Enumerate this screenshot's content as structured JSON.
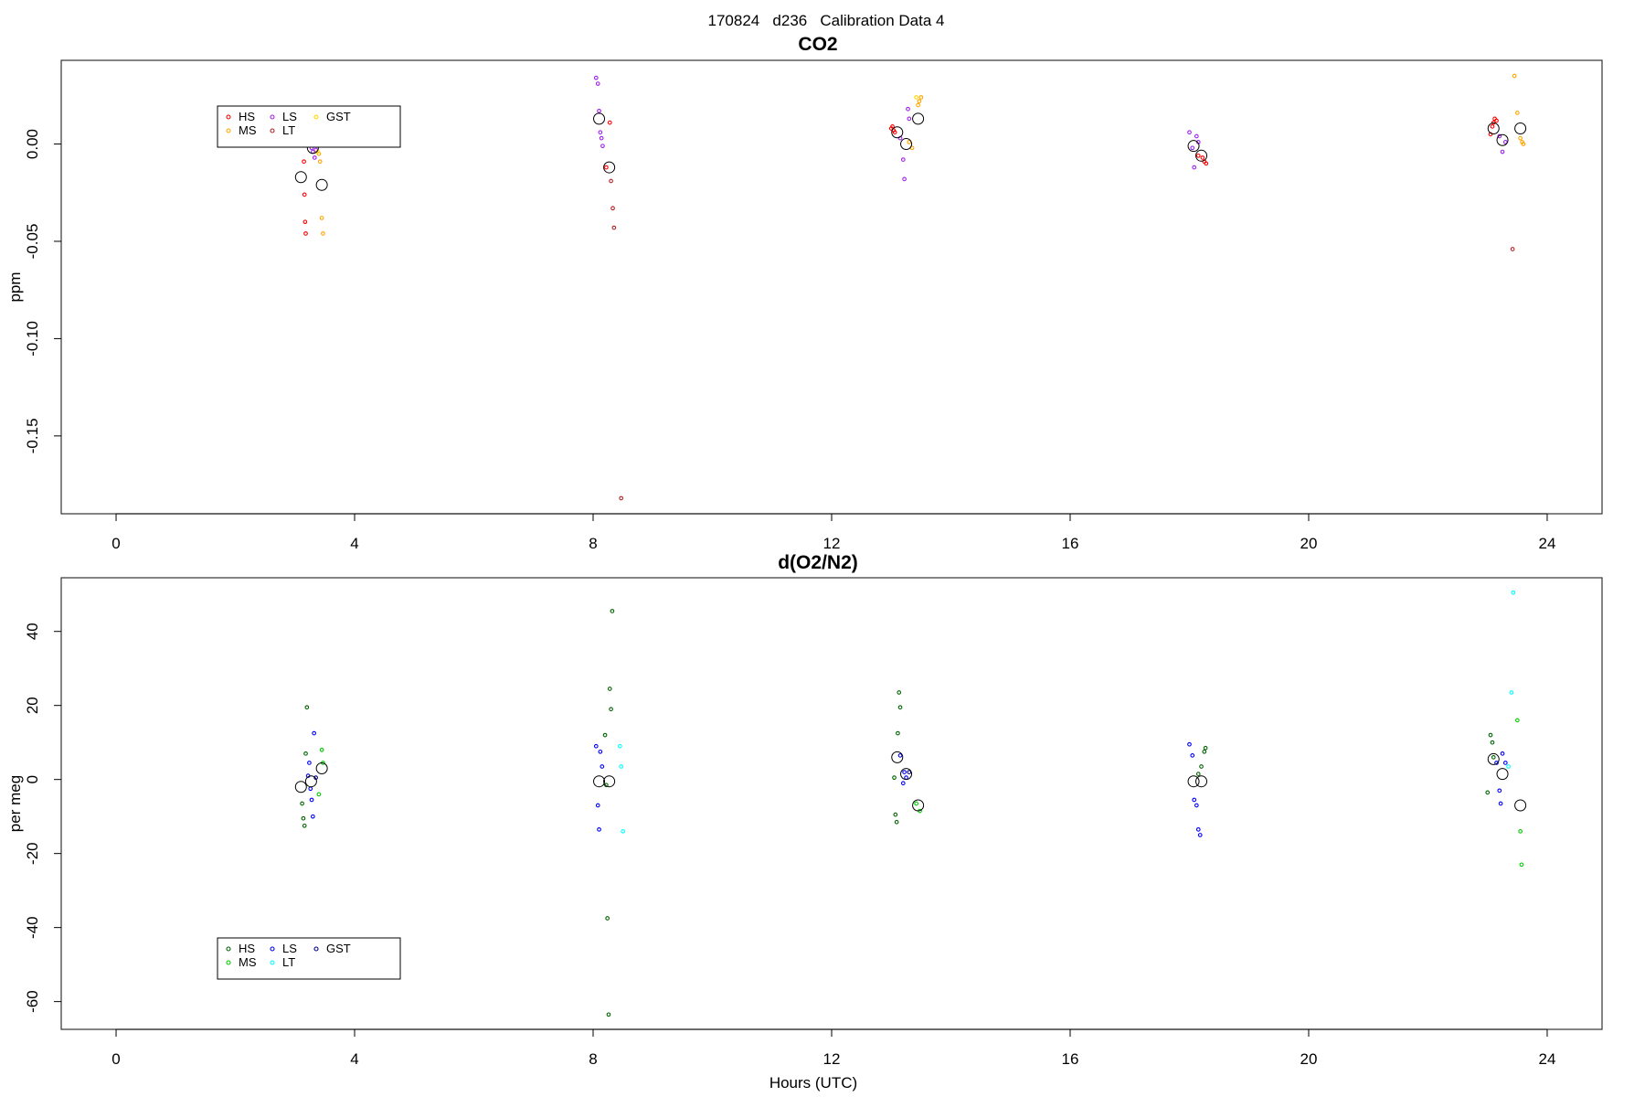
{
  "figure_title": "170824   d236   Calibration Data 4",
  "chart_data": [
    {
      "type": "scatter",
      "title": "CO2",
      "xlabel": "",
      "ylabel": "ppm",
      "xlim": [
        -0.92,
        24.92
      ],
      "ylim": [
        -0.19,
        0.043
      ],
      "xticks": [
        0,
        4,
        8,
        12,
        16,
        20,
        24
      ],
      "yticks": [
        0.0,
        -0.05,
        -0.1,
        -0.15
      ],
      "ytick_labels": [
        "0.00",
        "-0.05",
        "-0.10",
        "-0.15"
      ],
      "grid": false,
      "legend": {
        "placement": "top-left",
        "columns": 3,
        "entries": [
          {
            "label": "HS",
            "color": "#ff0000"
          },
          {
            "label": "MS",
            "color": "#ffa500"
          },
          {
            "label": "LS",
            "color": "#a020f0"
          },
          {
            "label": "LT",
            "color": "#b22222"
          },
          {
            "label": "GST",
            "color": "#ffd700"
          }
        ]
      },
      "series": [
        {
          "name": "HS",
          "color": "#ff0000",
          "points": [
            [
              3.15,
              -0.009
            ],
            [
              3.16,
              -0.026
            ],
            [
              3.17,
              -0.04
            ],
            [
              3.18,
              -0.046
            ],
            [
              8.22,
              -0.012
            ],
            [
              8.28,
              0.011
            ],
            [
              13.0,
              0.008
            ],
            [
              13.02,
              0.009
            ],
            [
              13.04,
              0.007
            ],
            [
              13.06,
              0.006
            ],
            [
              18.15,
              -0.006
            ],
            [
              18.22,
              -0.007
            ],
            [
              18.25,
              -0.009
            ],
            [
              18.28,
              -0.01
            ],
            [
              23.05,
              0.005
            ],
            [
              23.08,
              0.009
            ],
            [
              23.1,
              0.011
            ],
            [
              23.12,
              0.013
            ],
            [
              23.15,
              0.012
            ]
          ]
        },
        {
          "name": "MS",
          "color": "#ffa500",
          "points": [
            [
              3.4,
              -0.005
            ],
            [
              3.42,
              -0.009
            ],
            [
              3.45,
              -0.038
            ],
            [
              3.47,
              -0.046
            ],
            [
              13.3,
              0.001
            ],
            [
              13.35,
              -0.002
            ],
            [
              13.45,
              0.02
            ],
            [
              13.47,
              0.022
            ],
            [
              13.5,
              0.024
            ],
            [
              23.45,
              0.035
            ],
            [
              23.5,
              0.016
            ],
            [
              23.55,
              0.003
            ],
            [
              23.58,
              0.001
            ],
            [
              23.6,
              0.0
            ]
          ]
        },
        {
          "name": "LS",
          "color": "#a020f0",
          "points": [
            [
              3.28,
              -0.002
            ],
            [
              3.3,
              -0.004
            ],
            [
              3.33,
              -0.007
            ],
            [
              3.35,
              -0.003
            ],
            [
              8.05,
              0.034
            ],
            [
              8.08,
              0.031
            ],
            [
              8.1,
              0.017
            ],
            [
              8.12,
              0.006
            ],
            [
              8.14,
              0.003
            ],
            [
              8.16,
              -0.001
            ],
            [
              13.15,
              0.003
            ],
            [
              13.2,
              -0.008
            ],
            [
              13.22,
              -0.018
            ],
            [
              13.28,
              0.018
            ],
            [
              13.3,
              0.013
            ],
            [
              18.0,
              0.006
            ],
            [
              18.05,
              -0.002
            ],
            [
              18.08,
              -0.012
            ],
            [
              18.12,
              0.004
            ],
            [
              18.15,
              0.001
            ],
            [
              23.2,
              0.004
            ],
            [
              23.25,
              -0.004
            ],
            [
              23.3,
              0.001
            ]
          ]
        },
        {
          "name": "LT",
          "color": "#b22222",
          "points": [
            [
              8.3,
              -0.019
            ],
            [
              8.33,
              -0.033
            ],
            [
              8.35,
              -0.043
            ],
            [
              8.47,
              -0.182
            ],
            [
              23.42,
              -0.054
            ]
          ]
        },
        {
          "name": "GST",
          "color": "#ffd700",
          "points": [
            [
              3.38,
              -0.004
            ],
            [
              13.42,
              0.024
            ]
          ]
        },
        {
          "name": "",
          "color": "#000000",
          "marker": "large-circle",
          "points": [
            [
              3.1,
              -0.017
            ],
            [
              3.3,
              -0.002
            ],
            [
              3.45,
              -0.021
            ],
            [
              8.1,
              0.013
            ],
            [
              8.27,
              -0.012
            ],
            [
              13.1,
              0.006
            ],
            [
              13.25,
              0.0
            ],
            [
              13.45,
              0.013
            ],
            [
              18.07,
              -0.001
            ],
            [
              18.2,
              -0.006
            ],
            [
              23.1,
              0.008
            ],
            [
              23.25,
              0.002
            ],
            [
              23.55,
              0.008
            ]
          ]
        }
      ]
    },
    {
      "type": "scatter",
      "title": "d(O2/N2)",
      "xlabel": "Hours (UTC)",
      "ylabel": "per meg",
      "xlim": [
        -0.92,
        24.92
      ],
      "ylim": [
        -67.5,
        54.5
      ],
      "xticks": [
        0,
        4,
        8,
        12,
        16,
        20,
        24
      ],
      "yticks": [
        40,
        20,
        0,
        -20,
        -40,
        -60
      ],
      "ytick_labels": [
        "40",
        "20",
        "0",
        "-20",
        "-40",
        "-60"
      ],
      "grid": false,
      "legend": {
        "placement": "bottom-left",
        "columns": 3,
        "entries": [
          {
            "label": "HS",
            "color": "#006400"
          },
          {
            "label": "MS",
            "color": "#00cd00"
          },
          {
            "label": "LS",
            "color": "#0000ff"
          },
          {
            "label": "LT",
            "color": "#00ffff"
          },
          {
            "label": "GST",
            "color": "#00008b"
          }
        ]
      },
      "series": [
        {
          "name": "HS",
          "color": "#006400",
          "points": [
            [
              3.12,
              -6.5
            ],
            [
              3.14,
              -10.5
            ],
            [
              3.16,
              -12.5
            ],
            [
              3.18,
              7.0
            ],
            [
              3.2,
              19.5
            ],
            [
              8.2,
              12.0
            ],
            [
              8.22,
              -1.5
            ],
            [
              8.24,
              -37.5
            ],
            [
              8.26,
              -63.5
            ],
            [
              8.28,
              24.5
            ],
            [
              8.3,
              19.0
            ],
            [
              8.32,
              45.5
            ],
            [
              13.05,
              0.5
            ],
            [
              13.07,
              -9.5
            ],
            [
              13.09,
              -11.5
            ],
            [
              13.11,
              12.5
            ],
            [
              13.13,
              23.5
            ],
            [
              13.15,
              19.5
            ],
            [
              18.15,
              1.5
            ],
            [
              18.2,
              3.5
            ],
            [
              18.25,
              7.5
            ],
            [
              18.27,
              8.5
            ],
            [
              23.0,
              -3.5
            ],
            [
              23.05,
              12.0
            ],
            [
              23.08,
              10.0
            ],
            [
              23.1,
              6.0
            ]
          ]
        },
        {
          "name": "MS",
          "color": "#00cd00",
          "points": [
            [
              3.4,
              -4.0
            ],
            [
              3.45,
              8.0
            ],
            [
              3.47,
              4.5
            ],
            [
              13.42,
              -6.5
            ],
            [
              13.48,
              -8.5
            ],
            [
              23.5,
              16.0
            ],
            [
              23.55,
              -14.0
            ],
            [
              23.57,
              -23.0
            ]
          ]
        },
        {
          "name": "LS",
          "color": "#0000ff",
          "points": [
            [
              3.22,
              1.0
            ],
            [
              3.24,
              4.5
            ],
            [
              3.26,
              -2.5
            ],
            [
              3.28,
              -5.5
            ],
            [
              3.3,
              -10.0
            ],
            [
              3.32,
              12.5
            ],
            [
              8.05,
              9.0
            ],
            [
              8.08,
              -7.0
            ],
            [
              8.1,
              -13.5
            ],
            [
              8.12,
              7.5
            ],
            [
              8.15,
              3.5
            ],
            [
              13.15,
              6.5
            ],
            [
              13.2,
              -1.0
            ],
            [
              13.22,
              2.0
            ],
            [
              13.25,
              0.5
            ],
            [
              18.0,
              9.5
            ],
            [
              18.05,
              6.5
            ],
            [
              18.08,
              -5.5
            ],
            [
              18.12,
              -7.0
            ],
            [
              18.15,
              -13.5
            ],
            [
              18.18,
              -15.0
            ],
            [
              23.15,
              4.5
            ],
            [
              23.2,
              -3.0
            ],
            [
              23.22,
              -6.5
            ],
            [
              23.25,
              7.0
            ],
            [
              23.3,
              4.5
            ]
          ]
        },
        {
          "name": "LT",
          "color": "#00ffff",
          "points": [
            [
              8.45,
              9.0
            ],
            [
              8.47,
              3.5
            ],
            [
              8.5,
              -14.0
            ],
            [
              23.35,
              3.5
            ],
            [
              23.4,
              23.5
            ],
            [
              23.43,
              50.5
            ]
          ]
        },
        {
          "name": "GST",
          "color": "#00008b",
          "points": [
            [
              3.35,
              0.5
            ],
            [
              13.3,
              2.0
            ]
          ]
        },
        {
          "name": "",
          "color": "#000000",
          "marker": "large-circle",
          "points": [
            [
              3.1,
              -2.0
            ],
            [
              3.27,
              -0.5
            ],
            [
              3.45,
              3.0
            ],
            [
              8.1,
              -0.5
            ],
            [
              8.27,
              -0.5
            ],
            [
              13.1,
              6.0
            ],
            [
              13.25,
              1.5
            ],
            [
              13.45,
              -7.0
            ],
            [
              18.07,
              -0.5
            ],
            [
              18.2,
              -0.5
            ],
            [
              23.1,
              5.5
            ],
            [
              23.25,
              1.5
            ],
            [
              23.55,
              -7.0
            ]
          ]
        }
      ]
    }
  ]
}
